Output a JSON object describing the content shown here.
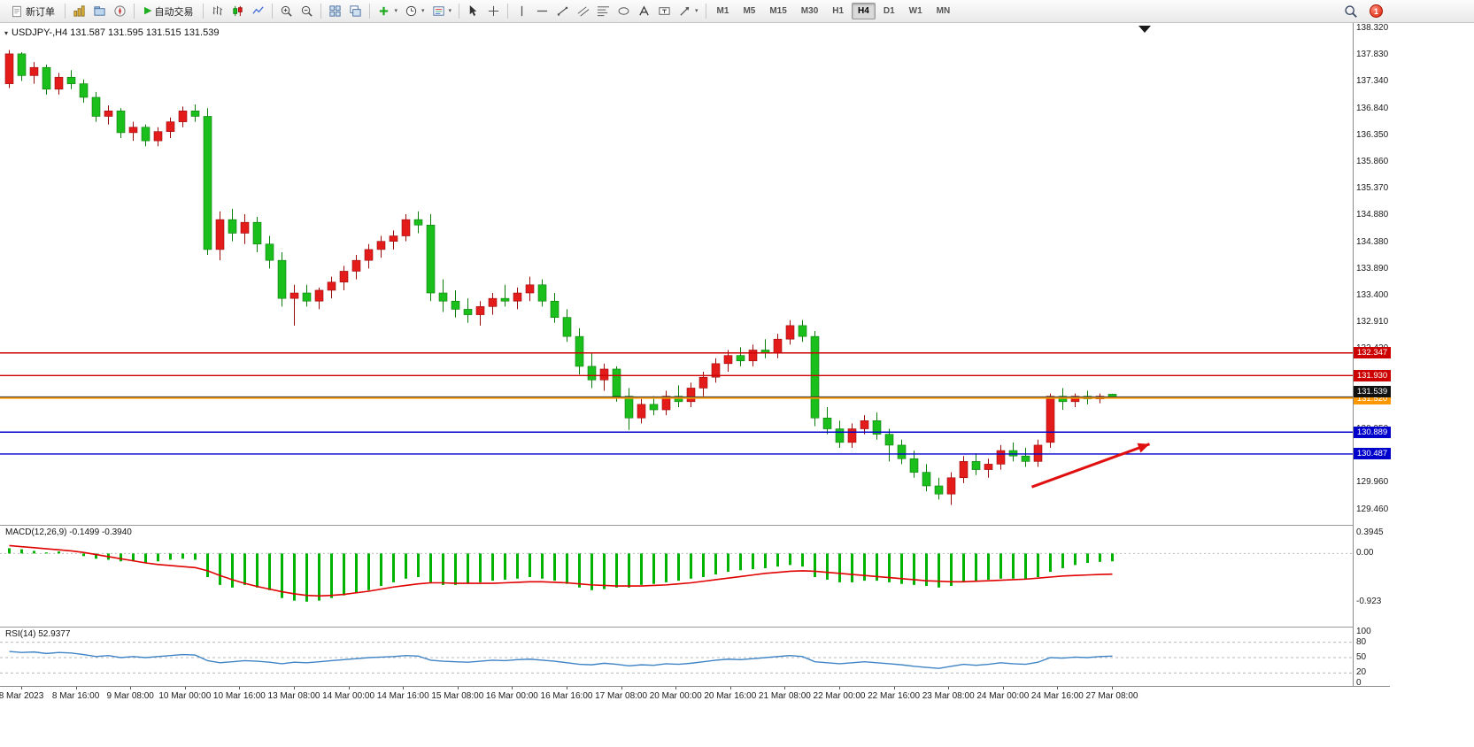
{
  "icons": {
    "caret_down": "▾",
    "collapse_triangle": "▾",
    "play": "▶"
  },
  "toolbar": {
    "new_order_label": "新订单",
    "auto_trading_label": "自动交易",
    "timeframes": [
      "M1",
      "M5",
      "M15",
      "M30",
      "H1",
      "H4",
      "D1",
      "W1",
      "MN"
    ],
    "active_timeframe": "H4",
    "notification_count": "1"
  },
  "colors": {
    "up": "#e31b1b",
    "up_wick": "#9c0b0b",
    "down": "#1bbf1b",
    "down_wick": "#0a7d0a",
    "macd_hist": "#00b300",
    "macd_signal": "#e00000",
    "rsi_line": "#3f85c6",
    "bid_line": "#3a3a3a"
  },
  "chart": {
    "title": "USDJPY-,H4 131.587 131.595 131.515 131.539",
    "current_price": "131.539",
    "scale": {
      "top_price": 138.32,
      "bottom_price": 129.46,
      "labels": [
        "138.320",
        "137.830",
        "137.340",
        "136.840",
        "136.350",
        "135.860",
        "135.370",
        "134.880",
        "134.380",
        "133.890",
        "133.400",
        "132.910",
        "132.420",
        "131.930",
        "131.440",
        "130.950",
        "130.460",
        "129.960",
        "129.460"
      ]
    },
    "hlines": [
      {
        "price": 132.347,
        "label": "132.347",
        "color": "#cc0000",
        "width": 1.4
      },
      {
        "price": 131.93,
        "label": "131.930",
        "color": "#cc0000",
        "width": 1.4
      },
      {
        "price": 131.52,
        "label": "131.520",
        "color": "#ff9800",
        "width": 2.2,
        "dy": 1
      },
      {
        "price": 130.889,
        "label": "130.889",
        "color": "#0000cc",
        "width": 1.4
      },
      {
        "price": 130.487,
        "label": "130.487",
        "color": "#0000cc",
        "width": 1.4
      }
    ],
    "arrow": {
      "from": [
        82.5,
        129.88
      ],
      "to": [
        92,
        130.67
      ],
      "color": "#e01010"
    },
    "time_labels": [
      "8 Mar 2023",
      "8 Mar 16:00",
      "9 Mar 08:00",
      "10 Mar 00:00",
      "10 Mar 16:00",
      "13 Mar 08:00",
      "14 Mar 00:00",
      "14 Mar 16:00",
      "15 Mar 08:00",
      "16 Mar 00:00",
      "16 Mar 16:00",
      "17 Mar 08:00",
      "20 Mar 00:00",
      "20 Mar 16:00",
      "21 Mar 08:00",
      "22 Mar 00:00",
      "22 Mar 16:00",
      "23 Mar 08:00",
      "24 Mar 00:00",
      "24 Mar 16:00",
      "27 Mar 08:00"
    ],
    "candles": [
      [
        137.3,
        137.92,
        137.22,
        137.85
      ],
      [
        137.85,
        137.88,
        137.35,
        137.45
      ],
      [
        137.45,
        137.7,
        137.3,
        137.6
      ],
      [
        137.6,
        137.65,
        137.1,
        137.2
      ],
      [
        137.2,
        137.5,
        137.1,
        137.42
      ],
      [
        137.42,
        137.55,
        137.2,
        137.3
      ],
      [
        137.3,
        137.38,
        136.95,
        137.05
      ],
      [
        137.05,
        137.15,
        136.6,
        136.7
      ],
      [
        136.7,
        136.9,
        136.55,
        136.8
      ],
      [
        136.8,
        136.85,
        136.3,
        136.4
      ],
      [
        136.4,
        136.6,
        136.25,
        136.5
      ],
      [
        136.5,
        136.55,
        136.15,
        136.25
      ],
      [
        136.25,
        136.5,
        136.15,
        136.42
      ],
      [
        136.42,
        136.68,
        136.3,
        136.6
      ],
      [
        136.6,
        136.88,
        136.5,
        136.8
      ],
      [
        136.8,
        136.92,
        136.6,
        136.7
      ],
      [
        136.7,
        136.85,
        134.15,
        134.25
      ],
      [
        134.25,
        134.95,
        134.05,
        134.8
      ],
      [
        134.8,
        135.0,
        134.4,
        134.55
      ],
      [
        134.55,
        134.9,
        134.35,
        134.75
      ],
      [
        134.75,
        134.85,
        134.2,
        134.35
      ],
      [
        134.35,
        134.5,
        133.9,
        134.05
      ],
      [
        134.05,
        134.2,
        133.2,
        133.35
      ],
      [
        133.35,
        133.6,
        132.85,
        133.45
      ],
      [
        133.45,
        133.6,
        133.2,
        133.3
      ],
      [
        133.3,
        133.55,
        133.15,
        133.5
      ],
      [
        133.5,
        133.75,
        133.35,
        133.65
      ],
      [
        133.65,
        133.95,
        133.5,
        133.85
      ],
      [
        133.85,
        134.15,
        133.7,
        134.05
      ],
      [
        134.05,
        134.35,
        133.9,
        134.25
      ],
      [
        134.25,
        134.5,
        134.1,
        134.4
      ],
      [
        134.4,
        134.6,
        134.25,
        134.5
      ],
      [
        134.5,
        134.9,
        134.4,
        134.8
      ],
      [
        134.8,
        134.95,
        134.55,
        134.7
      ],
      [
        134.7,
        134.9,
        133.3,
        133.45
      ],
      [
        133.45,
        133.7,
        133.1,
        133.3
      ],
      [
        133.3,
        133.5,
        133.0,
        133.15
      ],
      [
        133.15,
        133.35,
        132.9,
        133.05
      ],
      [
        133.05,
        133.3,
        132.85,
        133.2
      ],
      [
        133.2,
        133.45,
        133.05,
        133.35
      ],
      [
        133.35,
        133.6,
        133.2,
        133.3
      ],
      [
        133.3,
        133.55,
        133.15,
        133.45
      ],
      [
        133.45,
        133.75,
        133.3,
        133.6
      ],
      [
        133.6,
        133.7,
        133.2,
        133.3
      ],
      [
        133.3,
        133.45,
        132.9,
        133.0
      ],
      [
        133.0,
        133.15,
        132.55,
        132.65
      ],
      [
        132.65,
        132.8,
        131.95,
        132.1
      ],
      [
        132.1,
        132.35,
        131.7,
        131.85
      ],
      [
        131.85,
        132.15,
        131.65,
        132.05
      ],
      [
        132.05,
        132.1,
        131.45,
        131.55
      ],
      [
        131.55,
        131.7,
        130.93,
        131.15
      ],
      [
        131.15,
        131.5,
        131.05,
        131.4
      ],
      [
        131.4,
        131.55,
        131.2,
        131.3
      ],
      [
        131.3,
        131.65,
        131.2,
        131.55
      ],
      [
        131.55,
        131.75,
        131.35,
        131.45
      ],
      [
        131.45,
        131.8,
        131.35,
        131.7
      ],
      [
        131.7,
        132.0,
        131.55,
        131.9
      ],
      [
        131.9,
        132.25,
        131.8,
        132.15
      ],
      [
        132.15,
        132.4,
        132.0,
        132.3
      ],
      [
        132.3,
        132.45,
        132.1,
        132.2
      ],
      [
        132.2,
        132.5,
        132.1,
        132.4
      ],
      [
        132.4,
        132.6,
        132.25,
        132.35
      ],
      [
        132.35,
        132.7,
        132.25,
        132.6
      ],
      [
        132.6,
        132.95,
        132.5,
        132.85
      ],
      [
        132.85,
        132.95,
        132.55,
        132.65
      ],
      [
        132.65,
        132.75,
        131.0,
        131.15
      ],
      [
        131.15,
        131.35,
        130.85,
        130.95
      ],
      [
        130.95,
        131.1,
        130.6,
        130.7
      ],
      [
        130.7,
        131.05,
        130.6,
        130.95
      ],
      [
        130.95,
        131.2,
        130.85,
        131.1
      ],
      [
        131.1,
        131.25,
        130.75,
        130.85
      ],
      [
        130.85,
        130.95,
        130.35,
        130.65
      ],
      [
        130.65,
        130.75,
        130.3,
        130.4
      ],
      [
        130.4,
        130.55,
        130.05,
        130.15
      ],
      [
        130.15,
        130.3,
        129.8,
        129.9
      ],
      [
        129.9,
        130.05,
        129.65,
        129.75
      ],
      [
        129.75,
        130.15,
        129.55,
        130.05
      ],
      [
        130.05,
        130.45,
        129.95,
        130.35
      ],
      [
        130.35,
        130.5,
        130.1,
        130.2
      ],
      [
        130.2,
        130.4,
        130.05,
        130.3
      ],
      [
        130.3,
        130.65,
        130.2,
        130.55
      ],
      [
        130.55,
        130.7,
        130.35,
        130.45
      ],
      [
        130.45,
        130.6,
        130.25,
        130.35
      ],
      [
        130.35,
        130.75,
        130.25,
        130.65
      ],
      [
        130.7,
        131.6,
        130.6,
        131.55
      ],
      [
        131.55,
        131.7,
        131.3,
        131.45
      ],
      [
        131.45,
        131.6,
        131.35,
        131.55
      ],
      [
        131.55,
        131.65,
        131.4,
        131.5
      ],
      [
        131.5,
        131.6,
        131.42,
        131.55
      ],
      [
        131.587,
        131.595,
        131.515,
        131.539
      ]
    ]
  },
  "macd": {
    "label": "MACD(12,26,9) -0.1499 -0.3940",
    "scale": {
      "max": 0.3945,
      "min": -0.923
    },
    "axis_labels": [
      "0.3945",
      "0.00",
      "-0.923"
    ],
    "axis_values": [
      0.3945,
      0,
      -0.923
    ],
    "histogram": [
      0.1,
      0.08,
      0.05,
      0.02,
      0.04,
      0.0,
      -0.05,
      -0.1,
      -0.12,
      -0.15,
      -0.15,
      -0.18,
      -0.15,
      -0.12,
      -0.1,
      -0.12,
      -0.45,
      -0.6,
      -0.65,
      -0.6,
      -0.65,
      -0.7,
      -0.85,
      -0.9,
      -0.92,
      -0.9,
      -0.85,
      -0.8,
      -0.75,
      -0.7,
      -0.62,
      -0.55,
      -0.48,
      -0.45,
      -0.55,
      -0.6,
      -0.6,
      -0.58,
      -0.55,
      -0.52,
      -0.5,
      -0.48,
      -0.45,
      -0.48,
      -0.52,
      -0.58,
      -0.65,
      -0.7,
      -0.68,
      -0.65,
      -0.65,
      -0.6,
      -0.58,
      -0.55,
      -0.52,
      -0.48,
      -0.45,
      -0.4,
      -0.35,
      -0.32,
      -0.3,
      -0.28,
      -0.25,
      -0.22,
      -0.25,
      -0.45,
      -0.5,
      -0.55,
      -0.55,
      -0.52,
      -0.52,
      -0.55,
      -0.58,
      -0.6,
      -0.62,
      -0.65,
      -0.62,
      -0.55,
      -0.52,
      -0.5,
      -0.48,
      -0.48,
      -0.5,
      -0.45,
      -0.35,
      -0.28,
      -0.22,
      -0.18,
      -0.16,
      -0.1499
    ],
    "signal": [
      0.15,
      0.13,
      0.11,
      0.09,
      0.07,
      0.05,
      0.02,
      -0.02,
      -0.06,
      -0.1,
      -0.14,
      -0.18,
      -0.21,
      -0.23,
      -0.25,
      -0.27,
      -0.33,
      -0.42,
      -0.5,
      -0.57,
      -0.63,
      -0.68,
      -0.73,
      -0.77,
      -0.8,
      -0.81,
      -0.8,
      -0.78,
      -0.75,
      -0.72,
      -0.68,
      -0.64,
      -0.61,
      -0.58,
      -0.56,
      -0.56,
      -0.57,
      -0.57,
      -0.57,
      -0.57,
      -0.56,
      -0.55,
      -0.54,
      -0.54,
      -0.55,
      -0.56,
      -0.58,
      -0.6,
      -0.61,
      -0.62,
      -0.62,
      -0.62,
      -0.61,
      -0.6,
      -0.58,
      -0.56,
      -0.53,
      -0.5,
      -0.47,
      -0.44,
      -0.41,
      -0.38,
      -0.36,
      -0.34,
      -0.33,
      -0.34,
      -0.36,
      -0.38,
      -0.4,
      -0.42,
      -0.44,
      -0.46,
      -0.48,
      -0.5,
      -0.52,
      -0.53,
      -0.54,
      -0.54,
      -0.53,
      -0.52,
      -0.51,
      -0.5,
      -0.49,
      -0.47,
      -0.45,
      -0.43,
      -0.42,
      -0.41,
      -0.4,
      -0.394
    ]
  },
  "rsi": {
    "label": "RSI(14) 52.9377",
    "axis_labels": [
      "100",
      "80",
      "50",
      "20",
      "0"
    ],
    "axis_values": [
      100,
      80,
      50,
      20,
      0
    ],
    "levels": [
      80,
      50,
      20
    ],
    "values": [
      62,
      60,
      61,
      58,
      60,
      59,
      56,
      52,
      54,
      50,
      52,
      50,
      52,
      54,
      56,
      55,
      44,
      40,
      42,
      44,
      43,
      41,
      38,
      41,
      40,
      42,
      44,
      46,
      48,
      50,
      51,
      52,
      54,
      53,
      45,
      43,
      42,
      41,
      43,
      45,
      44,
      46,
      47,
      45,
      43,
      40,
      37,
      36,
      39,
      37,
      34,
      36,
      35,
      38,
      37,
      39,
      42,
      45,
      47,
      46,
      48,
      50,
      52,
      54,
      52,
      42,
      40,
      38,
      40,
      42,
      40,
      38,
      36,
      33,
      31,
      29,
      33,
      37,
      35,
      37,
      40,
      38,
      37,
      41,
      50,
      49,
      51,
      50,
      52,
      52.94
    ]
  }
}
